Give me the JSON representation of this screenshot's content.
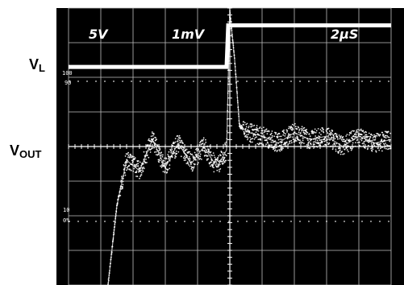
{
  "labels": {
    "vl_main": "V",
    "vl_sub": "L",
    "vout_main": "V",
    "vout_sub": "OUT"
  },
  "scope": {
    "ch1_scale": "5V",
    "ch2_scale": "1mV",
    "time_scale": "2μS",
    "marker_100": "100",
    "marker_90": "90",
    "marker_10": "10",
    "marker_0": "0%",
    "background_color": "#000000",
    "trace_color": "#ffffff"
  },
  "chart_data": {
    "type": "line",
    "x_unit_label": "2μS",
    "x_divisions": 10,
    "y_divisions": 8,
    "series": [
      {
        "name": "V_L",
        "x": [
          0,
          4.9,
          4.95,
          10
        ],
        "y": [
          6.3,
          6.3,
          7.5,
          7.5
        ]
      },
      {
        "name": "V_OUT",
        "x": [
          1.2,
          1.5,
          1.8,
          2.2,
          2.6,
          3.0,
          3.4,
          3.8,
          4.2,
          4.6,
          4.9,
          5.0,
          5.15,
          5.3,
          5.6,
          6.0,
          6.5,
          7.0,
          7.5,
          8.0,
          8.5,
          9.0,
          9.5,
          10
        ],
        "y": [
          -0.2,
          2.3,
          3.6,
          3.3,
          4.2,
          3.4,
          4.1,
          3.5,
          4.0,
          3.4,
          3.9,
          7.9,
          6.5,
          4.6,
          4.4,
          4.3,
          4.1,
          4.4,
          4.2,
          4.3,
          4.0,
          4.3,
          4.1,
          4.2
        ]
      }
    ]
  }
}
